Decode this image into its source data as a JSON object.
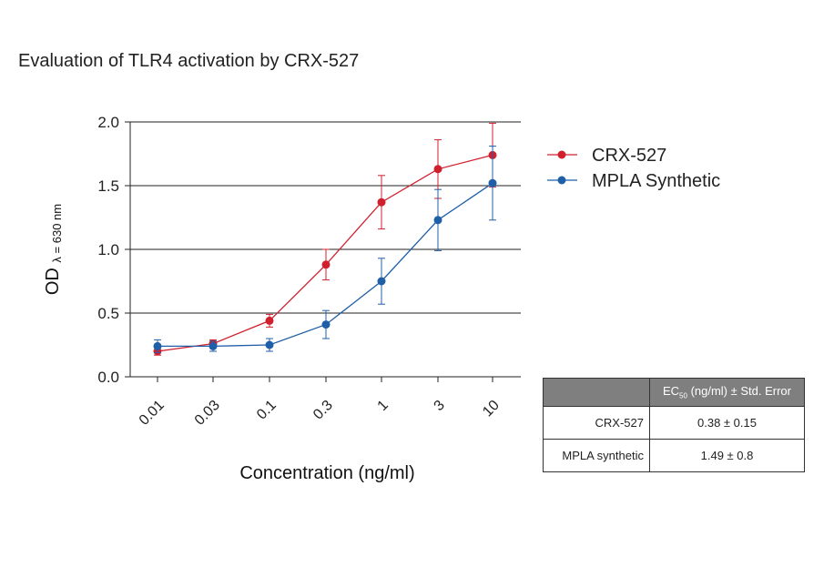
{
  "title": "Evaluation of TLR4 activation by CRX-527",
  "chart_data": {
    "type": "line",
    "xlabel": "Concentration (ng/ml)",
    "ylabel_main": "OD",
    "ylabel_sub": "λ = 630 nm",
    "categories": [
      "0.01",
      "0.03",
      "0.1",
      "0.3",
      "1",
      "3",
      "10"
    ],
    "ylim": [
      0,
      2
    ],
    "yticks": [
      "0.0",
      "0.5",
      "1.0",
      "1.5",
      "2.0"
    ],
    "grid": "horizontal",
    "legend_position": "right",
    "series": [
      {
        "name": "CRX-527",
        "color": "#d0202e",
        "values": [
          0.2,
          0.26,
          0.44,
          0.88,
          1.37,
          1.63,
          1.74
        ],
        "errors": [
          0.03,
          0.03,
          0.05,
          0.12,
          0.21,
          0.23,
          0.25
        ]
      },
      {
        "name": "MPLA Synthetic",
        "color": "#1f5fa8",
        "values": [
          0.24,
          0.24,
          0.25,
          0.41,
          0.75,
          1.23,
          1.52
        ],
        "errors": [
          0.05,
          0.04,
          0.05,
          0.11,
          0.18,
          0.24,
          0.29
        ]
      }
    ]
  },
  "table": {
    "header": "EC",
    "header_sub": "50",
    "header_rest": " (ng/ml) ± Std. Error",
    "rows": [
      {
        "label": "CRX-527",
        "value": "0.38 ± 0.15"
      },
      {
        "label": "MPLA synthetic",
        "value": "1.49 ± 0.8"
      }
    ]
  }
}
